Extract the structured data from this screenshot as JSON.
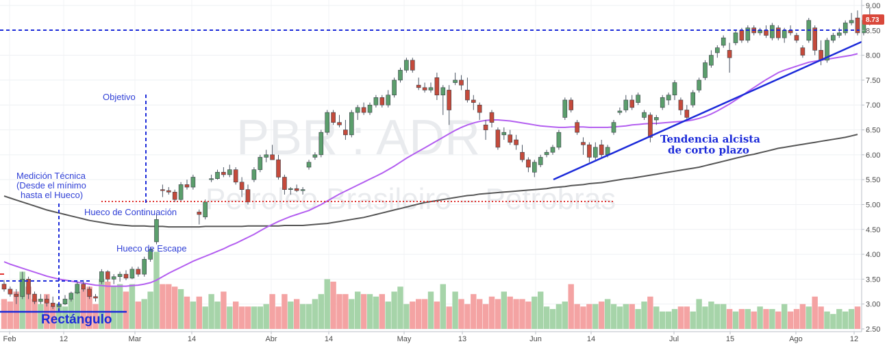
{
  "chart_data": {
    "type": "candlestick",
    "symbol": "PBR : ADR",
    "watermark_sub": "Petroleo Brasileiro – Petrobras",
    "last_price": "8.73",
    "y_axis_ticks": [
      "9.00",
      "8.50",
      "8.00",
      "7.50",
      "7.00",
      "6.50",
      "6.00",
      "5.50",
      "5.00",
      "4.50",
      "4.00",
      "3.50",
      "3.00",
      "2.50"
    ],
    "ylim": [
      2.5,
      9.0
    ],
    "x_axis_labels": [
      "Feb",
      "12",
      "Mar",
      "14",
      "Abr",
      "14",
      "May",
      "13",
      "Jun",
      "14",
      "Jul",
      "15",
      "Ago",
      "12"
    ],
    "colors": {
      "up": "#5b9e6c",
      "down": "#c44a3b",
      "vol_up": "#a6d4a9",
      "vol_down": "#f4a3a3",
      "ma_short": "#b35ef0",
      "ma_long": "#555555",
      "annotation": "#1b2ad9",
      "price_badge": "#d9483b"
    },
    "annotations": {
      "objetivo": "Objetivo",
      "medicion_1": "Medición Técnica",
      "medicion_2": "(Desde el mínimo",
      "medicion_3": "hasta el Hueco)",
      "hueco_continuacion": "Hueco de Continuación",
      "hueco_escape": "Hueco de Escape",
      "tendencia_1": "Tendencia alcista",
      "tendencia_2": "de corto plazo",
      "rectangulo": "Rectángulo"
    },
    "ohlc": [
      [
        3.4,
        3.48,
        3.25,
        3.3
      ],
      [
        3.3,
        3.35,
        3.15,
        3.2
      ],
      [
        3.2,
        3.3,
        3.0,
        3.15
      ],
      [
        3.15,
        3.65,
        3.1,
        3.5
      ],
      [
        3.5,
        3.55,
        3.1,
        3.2
      ],
      [
        3.2,
        3.25,
        3.0,
        3.05
      ],
      [
        3.05,
        3.2,
        3.0,
        3.1
      ],
      [
        3.1,
        3.18,
        2.95,
        3.02
      ],
      [
        3.02,
        3.15,
        2.9,
        2.95
      ],
      [
        2.95,
        3.05,
        2.88,
        3.0
      ],
      [
        3.0,
        3.18,
        2.98,
        3.1
      ],
      [
        3.1,
        3.25,
        3.05,
        3.22
      ],
      [
        3.22,
        3.45,
        3.2,
        3.4
      ],
      [
        3.4,
        3.48,
        3.25,
        3.3
      ],
      [
        3.3,
        3.35,
        3.1,
        3.15
      ],
      [
        3.15,
        3.2,
        3.05,
        3.12
      ],
      [
        3.45,
        3.7,
        3.4,
        3.65
      ],
      [
        3.65,
        3.68,
        3.45,
        3.5
      ],
      [
        3.5,
        3.6,
        3.4,
        3.55
      ],
      [
        3.55,
        3.65,
        3.45,
        3.6
      ],
      [
        3.6,
        3.68,
        3.48,
        3.52
      ],
      [
        3.52,
        3.75,
        3.5,
        3.7
      ],
      [
        3.7,
        3.75,
        3.55,
        3.6
      ],
      [
        3.6,
        3.95,
        3.55,
        3.9
      ],
      [
        3.9,
        4.15,
        3.85,
        4.1
      ],
      [
        4.25,
        4.8,
        4.2,
        4.7
      ],
      [
        5.3,
        5.4,
        5.15,
        5.28
      ],
      [
        5.28,
        5.35,
        5.2,
        5.25
      ],
      [
        5.25,
        5.3,
        5.05,
        5.1
      ],
      [
        5.1,
        5.45,
        5.05,
        5.4
      ],
      [
        5.4,
        5.5,
        5.3,
        5.35
      ],
      [
        5.35,
        5.6,
        5.3,
        5.55
      ],
      [
        4.85,
        4.9,
        4.6,
        4.8
      ],
      [
        4.75,
        5.1,
        4.7,
        5.05
      ],
      [
        5.5,
        5.6,
        5.45,
        5.52
      ],
      [
        5.52,
        5.7,
        5.5,
        5.65
      ],
      [
        5.65,
        5.75,
        5.55,
        5.6
      ],
      [
        5.6,
        5.8,
        5.55,
        5.7
      ],
      [
        5.7,
        5.75,
        5.4,
        5.45
      ],
      [
        5.45,
        5.55,
        5.15,
        5.3
      ],
      [
        5.3,
        5.4,
        5.0,
        5.05
      ],
      [
        5.5,
        5.75,
        5.45,
        5.7
      ],
      [
        5.7,
        6.0,
        5.65,
        5.95
      ],
      [
        5.95,
        6.1,
        5.85,
        6.0
      ],
      [
        6.0,
        6.2,
        5.9,
        5.9
      ],
      [
        5.9,
        6.0,
        5.5,
        5.55
      ],
      [
        5.55,
        5.6,
        5.2,
        5.3
      ],
      [
        5.3,
        5.35,
        5.2,
        5.32
      ],
      [
        5.32,
        5.4,
        5.25,
        5.28
      ],
      [
        5.28,
        5.35,
        5.2,
        5.3
      ],
      [
        5.75,
        5.9,
        5.7,
        5.85
      ],
      [
        5.95,
        6.05,
        5.9,
        6.0
      ],
      [
        6.0,
        6.5,
        5.95,
        6.45
      ],
      [
        6.45,
        6.9,
        6.4,
        6.85
      ],
      [
        6.85,
        6.9,
        6.6,
        6.65
      ],
      [
        6.65,
        6.8,
        6.55,
        6.6
      ],
      [
        6.5,
        6.7,
        6.3,
        6.4
      ],
      [
        6.4,
        6.9,
        6.35,
        6.85
      ],
      [
        6.85,
        7.0,
        6.7,
        6.95
      ],
      [
        6.95,
        7.05,
        6.8,
        6.85
      ],
      [
        6.85,
        7.05,
        6.8,
        7.0
      ],
      [
        7.0,
        7.2,
        6.95,
        7.15
      ],
      [
        7.15,
        7.2,
        6.95,
        7.0
      ],
      [
        7.0,
        7.3,
        6.95,
        7.2
      ],
      [
        7.2,
        7.55,
        7.15,
        7.5
      ],
      [
        7.5,
        7.75,
        7.45,
        7.7
      ],
      [
        7.7,
        7.95,
        7.65,
        7.9
      ],
      [
        7.9,
        7.95,
        7.65,
        7.7
      ],
      [
        7.4,
        7.55,
        7.3,
        7.35
      ],
      [
        7.35,
        7.45,
        7.25,
        7.3
      ],
      [
        7.3,
        7.45,
        7.25,
        7.35
      ],
      [
        7.55,
        7.65,
        7.1,
        7.2
      ],
      [
        7.2,
        7.4,
        6.8,
        7.35
      ],
      [
        7.3,
        7.4,
        6.6,
        6.9
      ],
      [
        7.45,
        7.65,
        7.4,
        7.5
      ],
      [
        7.5,
        7.6,
        7.3,
        7.4
      ],
      [
        7.3,
        7.55,
        7.05,
        7.1
      ],
      [
        7.1,
        7.2,
        6.9,
        7.05
      ],
      [
        7.0,
        7.05,
        6.7,
        6.85
      ],
      [
        6.6,
        6.7,
        6.3,
        6.5
      ],
      [
        6.85,
        6.9,
        6.55,
        6.65
      ],
      [
        6.5,
        6.55,
        6.1,
        6.15
      ],
      [
        6.4,
        6.55,
        6.3,
        6.45
      ],
      [
        6.4,
        6.5,
        6.2,
        6.25
      ],
      [
        6.3,
        6.4,
        6.1,
        6.2
      ],
      [
        6.05,
        6.2,
        5.85,
        5.9
      ],
      [
        5.9,
        5.95,
        5.65,
        5.75
      ],
      [
        5.65,
        5.9,
        5.55,
        5.85
      ],
      [
        5.8,
        6.0,
        5.75,
        5.95
      ],
      [
        6.0,
        6.1,
        5.95,
        6.05
      ],
      [
        6.05,
        6.2,
        6.0,
        6.15
      ],
      [
        6.15,
        6.5,
        6.1,
        6.45
      ],
      [
        6.75,
        7.15,
        6.7,
        7.1
      ],
      [
        7.1,
        7.15,
        6.85,
        6.9
      ],
      [
        6.65,
        6.7,
        6.4,
        6.45
      ],
      [
        6.25,
        6.35,
        6.0,
        6.2
      ],
      [
        6.2,
        6.25,
        5.85,
        5.95
      ],
      [
        5.95,
        6.25,
        5.9,
        6.15
      ],
      [
        6.2,
        6.3,
        5.95,
        6.0
      ],
      [
        6.0,
        6.2,
        5.95,
        6.15
      ],
      [
        6.45,
        6.7,
        6.4,
        6.65
      ],
      [
        6.85,
        6.95,
        6.8,
        6.88
      ],
      [
        6.9,
        7.2,
        6.85,
        7.1
      ],
      [
        7.1,
        7.2,
        6.9,
        6.95
      ],
      [
        7.05,
        7.25,
        7.0,
        7.2
      ],
      [
        6.75,
        6.9,
        6.7,
        6.85
      ],
      [
        6.8,
        6.85,
        6.25,
        6.35
      ],
      [
        6.7,
        6.8,
        6.6,
        6.75
      ],
      [
        6.95,
        7.2,
        6.9,
        7.15
      ],
      [
        7.1,
        7.25,
        7.0,
        7.2
      ],
      [
        7.2,
        7.5,
        7.1,
        7.45
      ],
      [
        7.1,
        7.15,
        6.8,
        6.9
      ],
      [
        6.9,
        7.0,
        6.7,
        6.75
      ],
      [
        7.0,
        7.3,
        6.95,
        7.25
      ],
      [
        7.3,
        7.55,
        7.25,
        7.5
      ],
      [
        7.55,
        7.9,
        7.5,
        7.85
      ],
      [
        7.8,
        8.1,
        7.75,
        8.0
      ],
      [
        8.05,
        8.2,
        7.95,
        8.15
      ],
      [
        8.2,
        8.4,
        8.15,
        8.35
      ],
      [
        8.1,
        8.25,
        7.65,
        7.95
      ],
      [
        8.25,
        8.5,
        8.2,
        8.45
      ],
      [
        8.5,
        8.55,
        8.25,
        8.3
      ],
      [
        8.3,
        8.6,
        8.25,
        8.55
      ],
      [
        8.55,
        8.6,
        8.4,
        8.45
      ],
      [
        8.45,
        8.55,
        8.4,
        8.5
      ],
      [
        8.5,
        8.6,
        8.35,
        8.4
      ],
      [
        8.35,
        8.65,
        8.3,
        8.6
      ],
      [
        8.55,
        8.6,
        8.3,
        8.35
      ],
      [
        8.35,
        8.55,
        8.25,
        8.5
      ],
      [
        8.5,
        8.6,
        8.4,
        8.45
      ],
      [
        8.4,
        8.45,
        8.25,
        8.3
      ],
      [
        8.15,
        8.2,
        7.95,
        8.0
      ],
      [
        8.3,
        8.75,
        8.25,
        8.7
      ],
      [
        8.55,
        8.6,
        8.0,
        8.1
      ],
      [
        8.1,
        8.3,
        7.8,
        7.9
      ],
      [
        7.9,
        8.35,
        7.85,
        8.3
      ],
      [
        8.3,
        8.45,
        8.25,
        8.4
      ],
      [
        8.4,
        8.55,
        8.35,
        8.45
      ],
      [
        8.45,
        8.7,
        8.4,
        8.65
      ],
      [
        8.65,
        8.85,
        8.6,
        8.7
      ],
      [
        8.75,
        8.9,
        8.4,
        8.45
      ],
      [
        8.45,
        8.75,
        8.4,
        8.7
      ],
      [
        8.7,
        8.95,
        8.6,
        8.73
      ]
    ],
    "volume": [
      3.1,
      3.05,
      3.25,
      3.65,
      3.35,
      3.1,
      3.0,
      3.2,
      2.95,
      3.0,
      2.95,
      3.1,
      3.25,
      3.3,
      3.35,
      3.0,
      3.5,
      3.45,
      3.35,
      3.4,
      3.25,
      3.4,
      3.05,
      3.1,
      3.25,
      4.05,
      3.4,
      3.4,
      3.35,
      3.3,
      3.15,
      3.05,
      3.15,
      2.95,
      3.2,
      3.05,
      3.25,
      2.95,
      3.05,
      2.95,
      2.95,
      2.95,
      2.95,
      3.0,
      3.2,
      2.95,
      3.2,
      3.05,
      3.1,
      3.0,
      3.0,
      3.1,
      3.2,
      3.5,
      3.45,
      3.2,
      3.2,
      3.1,
      3.25,
      3.2,
      3.2,
      3.15,
      3.2,
      3.05,
      3.25,
      3.35,
      3.0,
      3.05,
      3.1,
      3.1,
      3.25,
      3.05,
      3.4,
      2.95,
      3.25,
      3.1,
      3.0,
      3.2,
      3.1,
      3.0,
      3.15,
      3.1,
      3.25,
      3.15,
      3.1,
      3.1,
      3.05,
      3.15,
      3.25,
      2.95,
      2.9,
      3.0,
      3.05,
      3.4,
      3.0,
      2.95,
      3.0,
      3.0,
      3.05,
      3.1,
      3.0,
      2.95,
      3.0,
      3.0,
      2.9,
      3.05,
      3.15,
      2.95,
      2.85,
      2.85,
      2.9,
      2.95,
      2.95,
      2.85,
      3.1,
      2.95,
      3.05,
      3.0,
      3.0,
      2.9,
      2.85,
      2.9,
      2.9,
      2.85,
      2.95,
      2.9,
      2.9,
      2.85,
      3.0,
      2.85,
      2.9,
      3.0,
      2.95,
      3.15,
      2.95,
      2.85,
      2.8,
      2.9,
      2.85,
      2.9,
      2.95
    ],
    "ma_short": [
      3.85,
      3.8,
      3.76,
      3.72,
      3.68,
      3.64,
      3.6,
      3.56,
      3.53,
      3.5,
      3.48,
      3.46,
      3.44,
      3.42,
      3.4,
      3.38,
      3.37,
      3.36,
      3.36,
      3.36,
      3.36,
      3.37,
      3.38,
      3.4,
      3.43,
      3.48,
      3.55,
      3.62,
      3.68,
      3.74,
      3.8,
      3.86,
      3.91,
      3.96,
      4.01,
      4.06,
      4.11,
      4.17,
      4.22,
      4.28,
      4.34,
      4.4,
      4.47,
      4.54,
      4.6,
      4.66,
      4.71,
      4.76,
      4.8,
      4.84,
      4.88,
      4.94,
      5.0,
      5.07,
      5.14,
      5.21,
      5.27,
      5.33,
      5.39,
      5.45,
      5.51,
      5.57,
      5.63,
      5.7,
      5.77,
      5.85,
      5.93,
      6.0,
      6.07,
      6.14,
      6.21,
      6.28,
      6.35,
      6.42,
      6.49,
      6.55,
      6.6,
      6.64,
      6.67,
      6.69,
      6.7,
      6.7,
      6.69,
      6.68,
      6.66,
      6.64,
      6.62,
      6.6,
      6.58,
      6.57,
      6.56,
      6.55,
      6.55,
      6.56,
      6.56,
      6.56,
      6.55,
      6.55,
      6.55,
      6.55,
      6.56,
      6.57,
      6.58,
      6.6,
      6.61,
      6.62,
      6.63,
      6.63,
      6.64,
      6.65,
      6.66,
      6.67,
      6.68,
      6.7,
      6.73,
      6.77,
      6.82,
      6.88,
      6.95,
      7.02,
      7.1,
      7.18,
      7.27,
      7.35,
      7.43,
      7.51,
      7.58,
      7.65,
      7.7,
      7.74,
      7.78,
      7.82,
      7.86,
      7.88,
      7.9,
      7.92,
      7.94,
      7.96,
      7.98,
      8.0,
      8.03
    ],
    "ma_long": [
      5.17,
      5.13,
      5.09,
      5.05,
      5.01,
      4.97,
      4.93,
      4.89,
      4.86,
      4.83,
      4.8,
      4.77,
      4.74,
      4.71,
      4.68,
      4.66,
      4.64,
      4.62,
      4.6,
      4.59,
      4.58,
      4.57,
      4.57,
      4.57,
      4.56,
      4.56,
      4.56,
      4.55,
      4.55,
      4.55,
      4.55,
      4.55,
      4.55,
      4.56,
      4.56,
      4.56,
      4.56,
      4.56,
      4.56,
      4.56,
      4.57,
      4.57,
      4.57,
      4.57,
      4.57,
      4.57,
      4.58,
      4.58,
      4.58,
      4.58,
      4.59,
      4.6,
      4.61,
      4.62,
      4.64,
      4.66,
      4.68,
      4.7,
      4.72,
      4.74,
      4.77,
      4.8,
      4.83,
      4.86,
      4.89,
      4.92,
      4.95,
      4.98,
      5.01,
      5.04,
      5.06,
      5.08,
      5.1,
      5.12,
      5.14,
      5.16,
      5.18,
      5.19,
      5.21,
      5.22,
      5.23,
      5.24,
      5.25,
      5.26,
      5.27,
      5.28,
      5.29,
      5.3,
      5.31,
      5.32,
      5.34,
      5.35,
      5.36,
      5.38,
      5.39,
      5.4,
      5.42,
      5.43,
      5.44,
      5.46,
      5.48,
      5.5,
      5.52,
      5.53,
      5.55,
      5.57,
      5.59,
      5.61,
      5.63,
      5.65,
      5.67,
      5.69,
      5.71,
      5.73,
      5.75,
      5.78,
      5.81,
      5.84,
      5.87,
      5.9,
      5.93,
      5.96,
      5.99,
      6.01,
      6.04,
      6.07,
      6.1,
      6.13,
      6.15,
      6.17,
      6.19,
      6.21,
      6.23,
      6.25,
      6.27,
      6.29,
      6.31,
      6.33,
      6.35,
      6.38,
      6.41
    ]
  }
}
